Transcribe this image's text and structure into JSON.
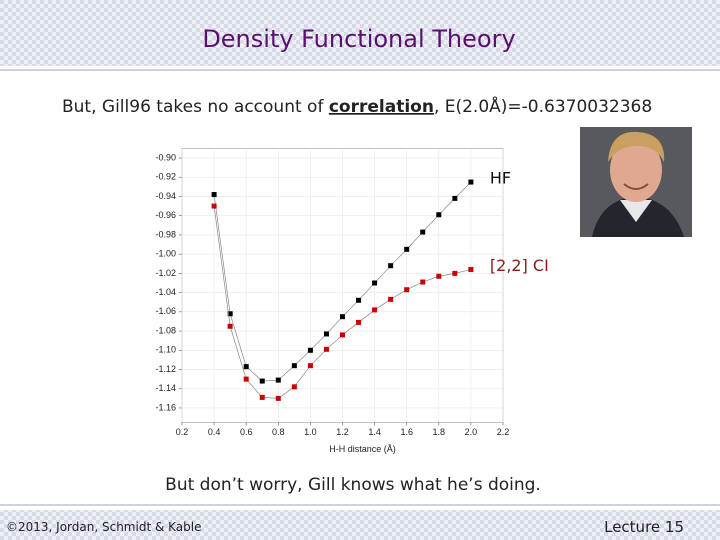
{
  "slide": {
    "title": "Density Functional Theory",
    "subtitle_start": "But, Gill96 takes no account of ",
    "subtitle_emphasis": "correlation",
    "subtitle_end": ", E(2.0Å)=-0.6370032368",
    "caption": "But don’t worry, Gill knows what he’s doing.",
    "footer_left": "©2013, Jordan, Schmidt & Kable",
    "footer_right": "Lecture 15"
  },
  "chart_data": {
    "type": "line",
    "xlabel": "H-H distance (Å)",
    "x": [
      0.4,
      0.5,
      0.6,
      0.7,
      0.8,
      0.9,
      1.0,
      1.1,
      1.2,
      1.3,
      1.4,
      1.5,
      1.6,
      1.7,
      1.8,
      1.9,
      2.0
    ],
    "series": [
      {
        "name": "HF",
        "color": "#000000",
        "values": [
          -0.938,
          -1.062,
          -1.117,
          -1.132,
          -1.131,
          -1.116,
          -1.1,
          -1.083,
          -1.065,
          -1.048,
          -1.03,
          -1.012,
          -0.995,
          -0.977,
          -0.959,
          -0.942,
          -0.925
        ]
      },
      {
        "name": "[2,2] CI",
        "color": "#cc0000",
        "values": [
          -0.95,
          -1.075,
          -1.13,
          -1.149,
          -1.15,
          -1.138,
          -1.116,
          -1.099,
          -1.084,
          -1.071,
          -1.058,
          -1.047,
          -1.037,
          -1.029,
          -1.023,
          -1.02,
          -1.016
        ]
      }
    ],
    "xlim": [
      0.2,
      2.2
    ],
    "xticks": [
      0.2,
      0.4,
      0.6,
      0.8,
      {
        "value": 1.0,
        "label": "1.0"
      },
      1.2,
      1.4,
      1.6,
      1.8,
      {
        "value": 2.0,
        "label": "2.0"
      },
      2.2
    ],
    "ylim": [
      -1.175,
      -0.89
    ],
    "yticks": [
      {
        "value": -0.9,
        "label": "-0.90"
      },
      {
        "value": -0.92,
        "label": "-0.92"
      },
      {
        "value": -0.94,
        "label": "-0.94"
      },
      {
        "value": -0.96,
        "label": "-0.96"
      },
      {
        "value": -0.98,
        "label": "-0.98"
      },
      {
        "value": -1.0,
        "label": "-1.00"
      },
      {
        "value": -1.02,
        "label": "-1.02"
      },
      {
        "value": -1.04,
        "label": "-1.04"
      },
      {
        "value": -1.06,
        "label": "-1.06"
      },
      {
        "value": -1.08,
        "label": "-1.08"
      },
      {
        "value": -1.1,
        "label": "-1.10"
      },
      {
        "value": -1.12,
        "label": "-1.12"
      },
      {
        "value": -1.14,
        "label": "-1.14"
      },
      {
        "value": -1.16,
        "label": "-1.16"
      }
    ],
    "grid": true
  }
}
